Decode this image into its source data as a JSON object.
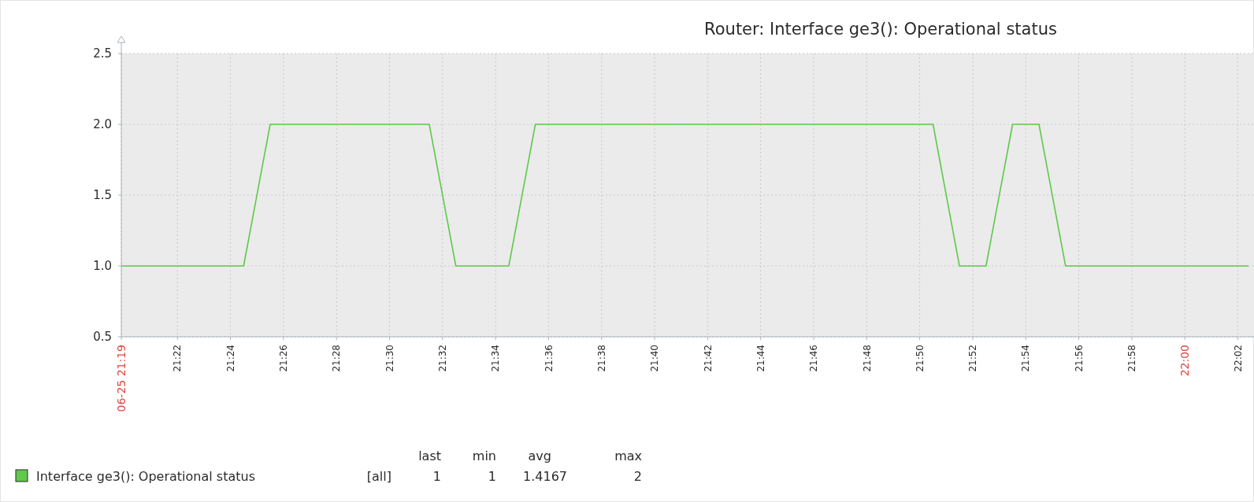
{
  "chart_data": {
    "type": "line",
    "title": "Router: Interface ge3(): Operational status",
    "x": [
      21.3314,
      21.4083,
      21.425,
      21.525,
      21.5417,
      21.575,
      21.5917,
      21.8417,
      21.8583,
      21.875,
      21.8917,
      21.9083,
      21.925,
      22.04
    ],
    "series": [
      {
        "name": "Interface ge3(): Operational status",
        "color": "#5ec94a",
        "values": [
          1,
          1,
          2,
          2,
          1,
          1,
          2,
          2,
          1,
          1,
          2,
          2,
          1,
          1
        ]
      }
    ],
    "xlim": [
      21.3314,
      22.04
    ],
    "xticks": [
      {
        "value": 21.3314,
        "label": "06-25 21:19"
      },
      {
        "value": 21.3667,
        "label": "21:22"
      },
      {
        "value": 21.4,
        "label": "21:24"
      },
      {
        "value": 21.4333,
        "label": "21:26"
      },
      {
        "value": 21.4667,
        "label": "21:28"
      },
      {
        "value": 21.5,
        "label": "21:30"
      },
      {
        "value": 21.5333,
        "label": "21:32"
      },
      {
        "value": 21.5667,
        "label": "21:34"
      },
      {
        "value": 21.6,
        "label": "21:36"
      },
      {
        "value": 21.6333,
        "label": "21:38"
      },
      {
        "value": 21.6667,
        "label": "21:40"
      },
      {
        "value": 21.7,
        "label": "21:42"
      },
      {
        "value": 21.7333,
        "label": "21:44"
      },
      {
        "value": 21.7667,
        "label": "21:46"
      },
      {
        "value": 21.8,
        "label": "21:48"
      },
      {
        "value": 21.8333,
        "label": "21:50"
      },
      {
        "value": 21.8667,
        "label": "21:52"
      },
      {
        "value": 21.9,
        "label": "21:54"
      },
      {
        "value": 21.9333,
        "label": "21:56"
      },
      {
        "value": 21.9667,
        "label": "21:58"
      },
      {
        "value": 22,
        "label": "22:00"
      },
      {
        "value": 22.0333,
        "label": "22:02"
      }
    ],
    "ylim": [
      0.5,
      2.5
    ],
    "yticks": [
      {
        "value": 0.5,
        "label": "0.5"
      },
      {
        "value": 1,
        "label": "1.0"
      },
      {
        "value": 1.5,
        "label": "1.5"
      },
      {
        "value": 2,
        "label": "2.0"
      },
      {
        "value": 2.5,
        "label": "2.5"
      }
    ],
    "grid": true,
    "legend": "bottom left",
    "marker": "none",
    "line_style": "solid",
    "annotations": [
      "[all]",
      "last",
      "min",
      "avg",
      "max",
      "1",
      "1",
      "1.4167",
      "2"
    ]
  }
}
